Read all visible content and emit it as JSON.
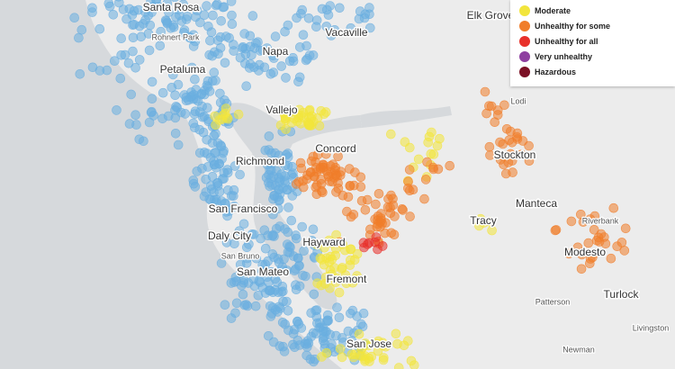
{
  "map": {
    "cities": [
      "Santa Rosa",
      "Vacaville",
      "Elk Grove",
      "Napa",
      "Petaluma",
      "Vallejo",
      "Concord",
      "Stockton",
      "Richmond",
      "Manteca",
      "San Francisco",
      "Tracy",
      "Daly City",
      "Hayward",
      "Modesto",
      "San Mateo",
      "Fremont",
      "Turlock",
      "San Jose"
    ],
    "towns": [
      "Rohnert Park",
      "Lodi",
      "Riverbank",
      "San Bruno",
      "Patterson",
      "Livingston",
      "Newman"
    ]
  },
  "legend": {
    "items": [
      {
        "label": "Moderate",
        "color": "#f2e53c"
      },
      {
        "label": "Unhealthy for some",
        "color": "#f07d2a"
      },
      {
        "label": "Unhealthy for all",
        "color": "#e8302a"
      },
      {
        "label": "Very unhealthy",
        "color": "#8e3fa0"
      },
      {
        "label": "Hazardous",
        "color": "#7b1025"
      }
    ]
  }
}
